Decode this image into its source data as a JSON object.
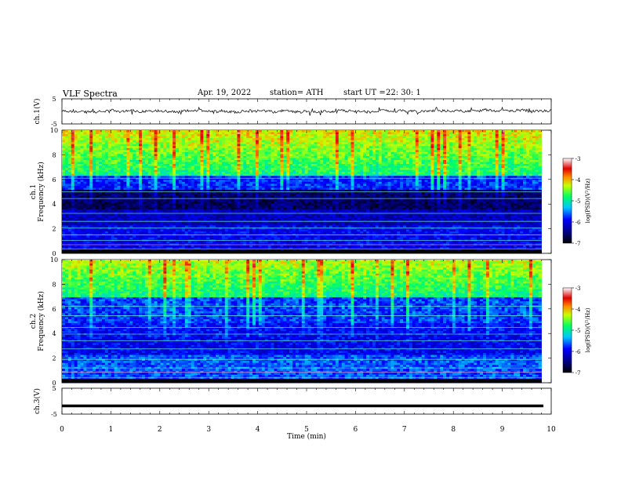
{
  "header": {
    "title": "VLF  Spectra",
    "date": "Apr. 19, 2022",
    "station": "station= ATH",
    "start_label": "start  UT  =",
    "start_ut": "22: 30: 1"
  },
  "chart_data": [
    {
      "type": "line",
      "panel": "ch1-waveform",
      "ylabel": "ch.1(V)",
      "ylim": [
        -5,
        5
      ],
      "y_ticks": [
        "5",
        "-5"
      ],
      "xlim": [
        0,
        10
      ],
      "grid": false,
      "series": [
        {
          "values_range": [
            -1.2,
            1.2
          ],
          "mean": 0
        }
      ]
    },
    {
      "type": "heatmap",
      "panel": "ch1-spectrogram",
      "ylabel": "ch.1\nFrequency  (kHz)",
      "ylim": [
        0,
        10
      ],
      "y_ticks": [
        "0",
        "2",
        "4",
        "6",
        "8",
        "10"
      ],
      "xlim": [
        0,
        9.8
      ],
      "colorbar": {
        "label": "log(PSD)(V²/Hz)",
        "range": [
          -7,
          -3
        ],
        "ticks": [
          "-3",
          "-4",
          "-5",
          "-6",
          "-7"
        ]
      }
    },
    {
      "type": "heatmap",
      "panel": "ch2-spectrogram",
      "ylabel": "ch.2\nFrequency  (kHz)",
      "ylim": [
        0,
        10
      ],
      "y_ticks": [
        "0",
        "2",
        "4",
        "6",
        "8",
        "10"
      ],
      "xlim": [
        0,
        9.8
      ],
      "colorbar": {
        "label": "log(PSD)(V²/Hz)",
        "range": [
          -7,
          -3
        ],
        "ticks": [
          "-3",
          "-4",
          "-5",
          "-6",
          "-7"
        ]
      }
    },
    {
      "type": "line",
      "panel": "ch3-waveform",
      "ylabel": "ch.3(V)",
      "ylim": [
        -5,
        5
      ],
      "y_ticks": [
        "5",
        "-5"
      ],
      "xlim": [
        0,
        10
      ],
      "xlabel": "Time  (min)",
      "x_ticks": [
        "0",
        "1",
        "2",
        "3",
        "4",
        "5",
        "6",
        "7",
        "8",
        "9",
        "10"
      ],
      "series": [
        {
          "value": -1.8
        }
      ]
    }
  ]
}
